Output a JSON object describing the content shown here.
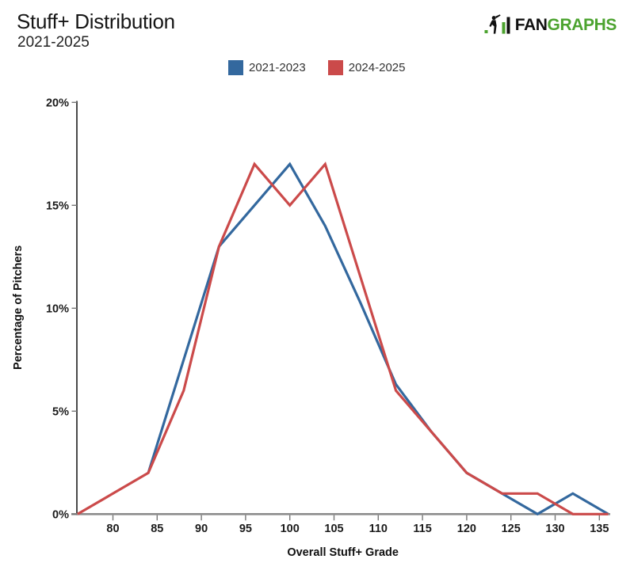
{
  "header": {
    "title": "Stuff+ Distribution",
    "subtitle": "2021-2025"
  },
  "logo": {
    "fan": "FAN",
    "graphs": "GRAPHS",
    "green": "#4CA32F",
    "black": "#111111"
  },
  "legend": [
    {
      "label": "2021-2023",
      "color": "#33689E"
    },
    {
      "label": "2024-2025",
      "color": "#CB4A4A"
    }
  ],
  "chart_data": {
    "type": "line",
    "title": "Stuff+ Distribution",
    "subtitle": "2021-2025",
    "xlabel": "Overall Stuff+ Grade",
    "ylabel": "Percentage of Pitchers",
    "xlim": [
      76,
      136.3
    ],
    "ylim": [
      0,
      20
    ],
    "grid": false,
    "legend_position": "top-center",
    "x_ticks": [
      80,
      85,
      90,
      95,
      100,
      105,
      110,
      115,
      120,
      125,
      130,
      135
    ],
    "y_ticks": [
      0,
      5,
      10,
      15,
      20
    ],
    "y_tick_suffix": "%",
    "series": [
      {
        "name": "2021-2023",
        "color": "#33689E",
        "points": [
          [
            84,
            2
          ],
          [
            88,
            7.5
          ],
          [
            92,
            13
          ],
          [
            96,
            15
          ],
          [
            100,
            17
          ],
          [
            104,
            14
          ],
          [
            108,
            10.25
          ],
          [
            112,
            6.3
          ],
          [
            116,
            4
          ],
          [
            120,
            2
          ],
          [
            124,
            1
          ],
          [
            128,
            0
          ],
          [
            132,
            1
          ],
          [
            136,
            0
          ]
        ]
      },
      {
        "name": "2024-2025",
        "color": "#CB4A4A",
        "points": [
          [
            76,
            0
          ],
          [
            80,
            1
          ],
          [
            84,
            2
          ],
          [
            88,
            6
          ],
          [
            92,
            13
          ],
          [
            96,
            17
          ],
          [
            100,
            15
          ],
          [
            104,
            17
          ],
          [
            108,
            11.5
          ],
          [
            112,
            6
          ],
          [
            116,
            4
          ],
          [
            120,
            2
          ],
          [
            124,
            1
          ],
          [
            128,
            1
          ],
          [
            132,
            0
          ],
          [
            136,
            0
          ]
        ]
      }
    ]
  }
}
